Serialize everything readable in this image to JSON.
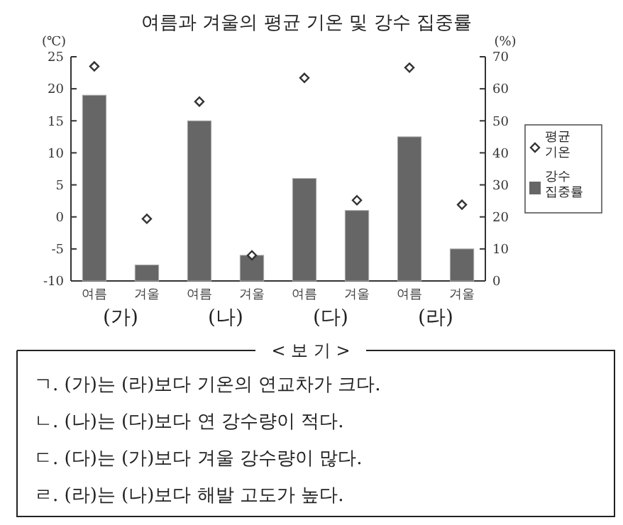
{
  "chart_data": {
    "type": "bar",
    "title": "여름과 겨울의 평균 기온 및 강수 집중률",
    "categories": [
      "여름",
      "겨울",
      "여름",
      "겨울",
      "여름",
      "겨울",
      "여름",
      "겨울"
    ],
    "series": [
      {
        "name": "평균 기온",
        "type": "scatter",
        "marker": "diamond",
        "color": "#333333",
        "values": [
          23.5,
          -0.3,
          18,
          -6,
          21.7,
          2.6,
          23.3,
          1.9
        ]
      },
      {
        "name": "강수 집중률",
        "axis": "y2",
        "color": "#666666",
        "values": [
          58,
          5,
          50,
          8,
          32,
          22,
          45,
          10
        ]
      }
    ],
    "ylabel": "(℃)",
    "y2label": "(%)",
    "ylim": [
      -10,
      25
    ],
    "yticks": [
      -10,
      -5,
      0,
      5,
      10,
      15,
      20,
      25
    ],
    "y2lim": [
      0,
      70
    ],
    "y2ticks": [
      0,
      10,
      20,
      30,
      40,
      50,
      60,
      70
    ],
    "legend": "right",
    "grid": false,
    "annotations": [
      "(가)",
      "(나)",
      "(다)",
      "(라)",
      "< 보 기 >",
      "ㄱ. (가)는 (라)보다 기온의 연교차가 크다.",
      "ㄴ. (나)는 (다)보다 연 강수량이 적다.",
      "ㄷ. (다)는 (가)보다 겨울 강수량이 많다.",
      "ㄹ. (라)는 (나)보다 해발 고도가 높다."
    ]
  }
}
